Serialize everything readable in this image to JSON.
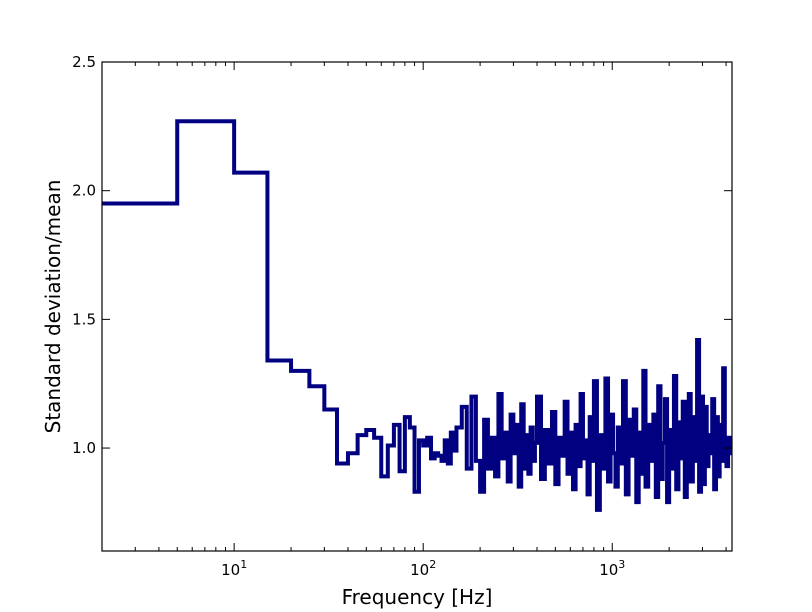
{
  "chart_data": {
    "type": "line",
    "step": true,
    "xscale": "log",
    "xlabel": "Frequency [Hz]",
    "ylabel": "Standard deviation/mean",
    "xlim": [
      2,
      4300
    ],
    "ylim": [
      0.6,
      2.5
    ],
    "y_ticks": [
      {
        "value": 1.0,
        "label": "1.0"
      },
      {
        "value": 1.5,
        "label": "1.5"
      },
      {
        "value": 2.0,
        "label": "2.0"
      },
      {
        "value": 2.5,
        "label": "2.5"
      }
    ],
    "x_ticks": [
      {
        "value": 10,
        "base": "10",
        "exp": "1"
      },
      {
        "value": 100,
        "base": "10",
        "exp": "2"
      },
      {
        "value": 1000,
        "base": "10",
        "exp": "3"
      }
    ],
    "line_color": "#000080",
    "grid": false,
    "series": [
      {
        "x": [
          2,
          5,
          10,
          15,
          20,
          25,
          30,
          35,
          40,
          45,
          50,
          55,
          60,
          65,
          70,
          75,
          80,
          85,
          90,
          95,
          100,
          105,
          110,
          115,
          120,
          125,
          130,
          135,
          140,
          145,
          150,
          160,
          170,
          180,
          190,
          200,
          210,
          220,
          230,
          240,
          250,
          260,
          270,
          280,
          290,
          300,
          310,
          320,
          330,
          340,
          350,
          360,
          370,
          380,
          390,
          400,
          420,
          440,
          460,
          480,
          500,
          520,
          540,
          560,
          580,
          600,
          620,
          640,
          660,
          680,
          700,
          720,
          740,
          760,
          780,
          800,
          830,
          860,
          890,
          920,
          950,
          980,
          1010,
          1040,
          1070,
          1100,
          1140,
          1180,
          1220,
          1260,
          1300,
          1340,
          1380,
          1420,
          1460,
          1500,
          1550,
          1600,
          1650,
          1700,
          1750,
          1800,
          1850,
          1900,
          1950,
          2000,
          2060,
          2120,
          2180,
          2240,
          2300,
          2360,
          2420,
          2480,
          2540,
          2600,
          2670,
          2740,
          2810,
          2880,
          2950,
          3020,
          3090,
          3160,
          3230,
          3300,
          3380,
          3460,
          3540,
          3620,
          3700,
          3780,
          3860,
          3940,
          4020,
          4100,
          4200,
          4300
        ],
        "y": [
          1.95,
          2.27,
          2.07,
          1.34,
          1.3,
          1.24,
          1.15,
          0.94,
          0.98,
          1.05,
          1.07,
          1.04,
          0.89,
          1.01,
          1.09,
          0.91,
          1.12,
          1.08,
          0.83,
          1.03,
          1.01,
          1.04,
          0.96,
          0.98,
          0.97,
          0.95,
          1.03,
          0.94,
          1.06,
          0.99,
          1.08,
          1.16,
          0.92,
          1.2,
          0.95,
          0.83,
          1.11,
          0.92,
          1.04,
          0.89,
          1.21,
          0.96,
          1.06,
          0.87,
          1.13,
          0.98,
          1.09,
          0.85,
          1.17,
          0.92,
          1.05,
          0.9,
          1.08,
          0.95,
          1.02,
          1.2,
          0.88,
          1.07,
          0.94,
          1.14,
          0.86,
          1.04,
          0.97,
          1.18,
          0.9,
          1.06,
          0.84,
          1.09,
          0.93,
          1.21,
          0.96,
          1.03,
          0.82,
          1.12,
          0.95,
          1.26,
          0.76,
          1.05,
          0.92,
          1.27,
          0.87,
          1.13,
          0.98,
          0.85,
          1.08,
          0.94,
          1.26,
          0.82,
          1.11,
          0.97,
          1.15,
          0.79,
          1.06,
          0.9,
          1.3,
          0.85,
          1.09,
          0.95,
          1.13,
          0.81,
          1.24,
          0.88,
          1.02,
          1.19,
          0.79,
          1.07,
          0.92,
          1.28,
          0.84,
          1.1,
          0.96,
          1.18,
          0.81,
          1.04,
          1.21,
          0.87,
          1.12,
          0.95,
          1.42,
          0.83,
          1.2,
          0.86,
          1.16,
          0.93,
          1.05,
          0.98,
          1.19,
          0.84,
          1.12,
          0.89,
          1.09,
          0.95,
          1.31,
          1.0,
          0.93,
          1.04,
          0.98,
          1.0
        ]
      }
    ]
  }
}
